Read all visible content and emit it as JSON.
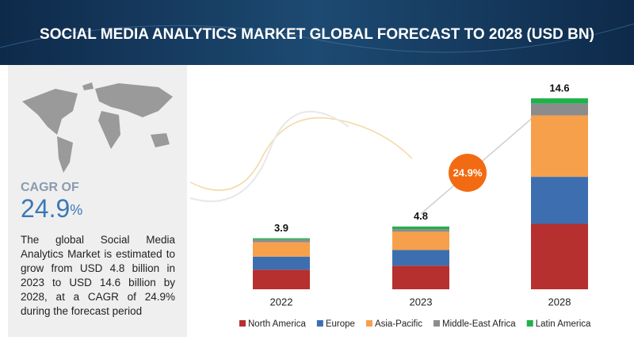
{
  "chart_data": {
    "type": "stacked_bar",
    "title": "SOCIAL MEDIA ANALYTICS MARKET GLOBAL FORECAST TO 2028 (USD BN)",
    "categories": [
      "2022",
      "2023",
      "2028"
    ],
    "totals": [
      3.9,
      4.8,
      14.6
    ],
    "series": [
      {
        "name": "North America",
        "color": "#b5302e",
        "values": [
          1.5,
          1.8,
          5.0
        ]
      },
      {
        "name": "Europe",
        "color": "#3d6fb0",
        "values": [
          1.0,
          1.2,
          3.6
        ]
      },
      {
        "name": "Asia-Pacific",
        "color": "#f7a04b",
        "values": [
          1.1,
          1.4,
          4.7
        ]
      },
      {
        "name": "Middle-East Africa",
        "color": "#8c8c8c",
        "values": [
          0.2,
          0.2,
          0.9
        ]
      },
      {
        "name": "Latin America",
        "color": "#22b04b",
        "values": [
          0.1,
          0.2,
          0.4
        ]
      }
    ],
    "cagr_annotation": "24.9%",
    "cagr_label": "CAGR OF",
    "cagr_value": "24.9",
    "cagr_unit": "%",
    "description": "The global Social Media Analytics Market is estimated to grow from USD 4.8 billion in 2023 to USD 14.6 billion by 2028, at a CAGR of 24.9% during the forecast period"
  }
}
